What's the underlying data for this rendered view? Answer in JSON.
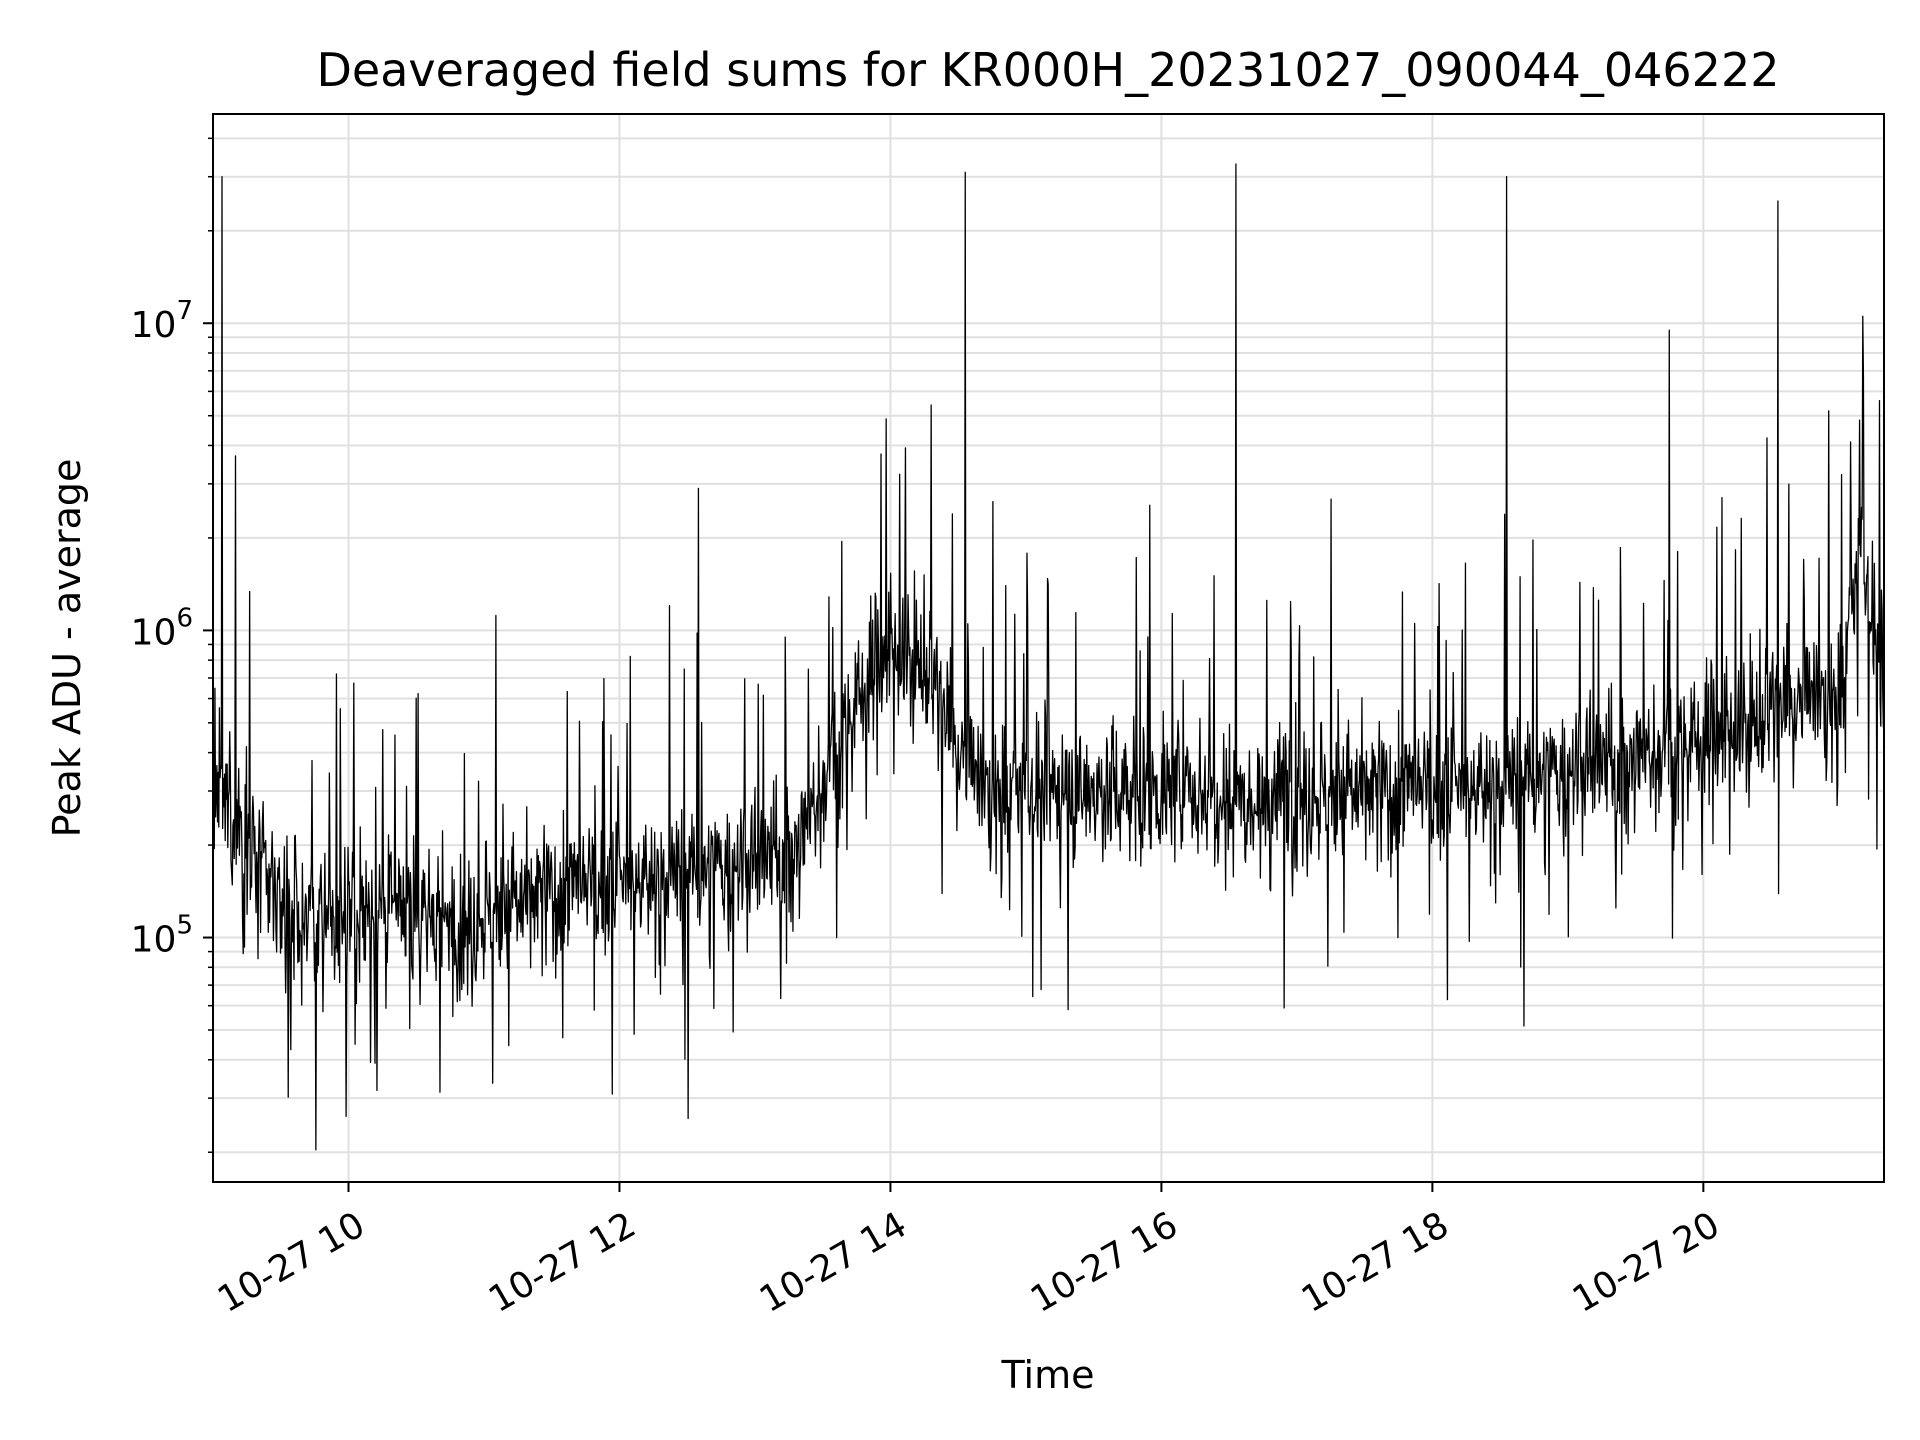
{
  "chart_data": {
    "type": "line",
    "title": "Deaveraged field sums for KR000H_20231027_090044_046222",
    "xlabel": "Time",
    "ylabel": "Peak ADU - average",
    "yscale": "log",
    "grid": true,
    "line_color": "#000000",
    "grid_color": "#e0e0e0",
    "xlim": [
      "10-27 09:00",
      "10-27 21:20"
    ],
    "ylim": [
      16000,
      48000000
    ],
    "x_ticks": [
      {
        "value": "10-27 10:00",
        "label": "10-27 10"
      },
      {
        "value": "10-27 12:00",
        "label": "10-27 12"
      },
      {
        "value": "10-27 14:00",
        "label": "10-27 14"
      },
      {
        "value": "10-27 16:00",
        "label": "10-27 16"
      },
      {
        "value": "10-27 18:00",
        "label": "10-27 18"
      },
      {
        "value": "10-27 20:00",
        "label": "10-27 20"
      }
    ],
    "y_ticks": [
      {
        "value": 100000,
        "base": "10",
        "exp": "5"
      },
      {
        "value": 1000000,
        "base": "10",
        "exp": "6"
      },
      {
        "value": 10000000,
        "base": "10",
        "exp": "7"
      }
    ],
    "series": [
      {
        "values_description_hidden": false,
        "x": [
          "10-27 09:00",
          "10-27 09:04",
          "10-27 09:07",
          "10-27 09:10",
          "10-27 09:14",
          "10-27 09:18",
          "10-27 09:25",
          "10-27 09:35",
          "10-27 09:45",
          "10-27 10:00",
          "10-27 10:30",
          "10-27 10:55",
          "10-27 11:00",
          "10-27 11:30",
          "10-27 12:00",
          "10-27 12:30",
          "10-27 12:35",
          "10-27 13:00",
          "10-27 13:20",
          "10-27 13:35",
          "10-27 13:50",
          "10-27 14:00",
          "10-27 14:15",
          "10-27 14:30",
          "10-27 14:33",
          "10-27 14:40",
          "10-27 15:00",
          "10-27 15:30",
          "10-27 16:00",
          "10-27 16:30",
          "10-27 16:33",
          "10-27 17:00",
          "10-27 17:30",
          "10-27 18:00",
          "10-27 18:30",
          "10-27 18:33",
          "10-27 19:00",
          "10-27 19:30",
          "10-27 19:45",
          "10-27 20:00",
          "10-27 20:30",
          "10-27 20:33",
          "10-27 21:00",
          "10-27 21:10",
          "10-27 21:18",
          "10-27 21:20"
        ],
        "values": [
          300000,
          30000000,
          250000,
          3700000,
          220000,
          180000,
          150000,
          120000,
          110000,
          120000,
          120000,
          110000,
          120000,
          140000,
          150000,
          160000,
          2900000,
          170000,
          200000,
          400000,
          700000,
          900000,
          800000,
          400000,
          31000000,
          300000,
          300000,
          300000,
          300000,
          300000,
          33000000,
          290000,
          300000,
          300000,
          310000,
          30000000,
          340000,
          380000,
          9500000,
          450000,
          550000,
          25000000,
          600000,
          1900000,
          5600000,
          600000
        ]
      }
    ]
  }
}
